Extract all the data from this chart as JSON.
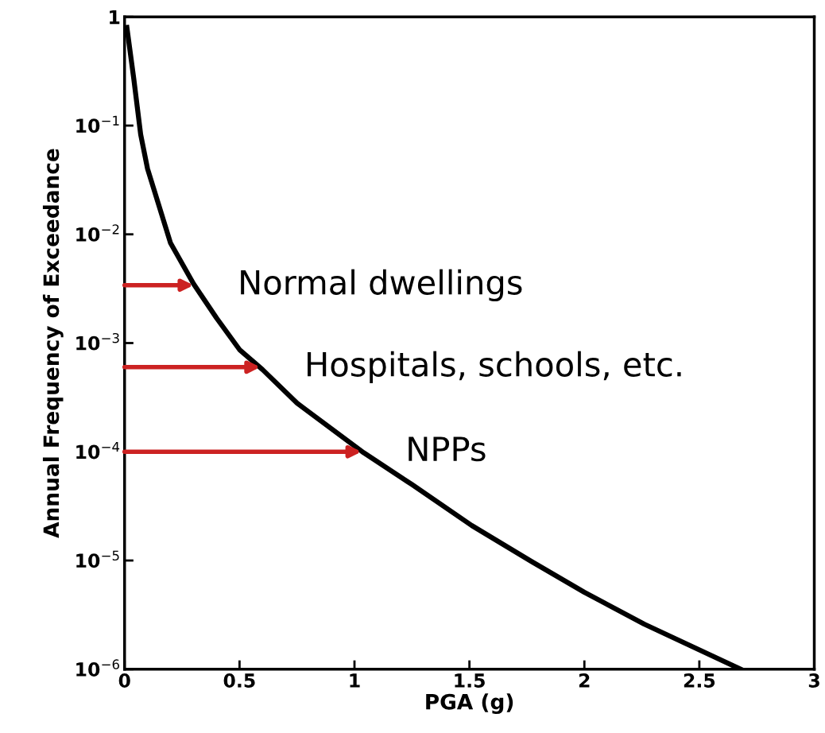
{
  "chart_data": {
    "type": "line",
    "xlabel": "PGA (g)",
    "ylabel": "Annual Frequency of Exceedance",
    "log": "y",
    "grid": false,
    "legend": false,
    "marker": "none",
    "line_style": "solid",
    "xlim": [
      0,
      3
    ],
    "xticks": [
      0,
      0.5,
      1,
      1.5,
      2,
      2.5,
      3
    ],
    "ylim": [
      1e-06,
      1
    ],
    "yticks": [
      {
        "value": 1e-06,
        "label": "10$^{−6}$"
      },
      {
        "value": 1e-05,
        "label": "10$^{−5}$"
      },
      {
        "value": 0.0001,
        "label": "10$^{−4}$"
      },
      {
        "value": 0.001,
        "label": "10$^{−3}$"
      },
      {
        "value": 0.01,
        "label": "10$^{−2}$"
      },
      {
        "value": 0.1,
        "label": "10$^{−1}$"
      },
      1
    ],
    "series": [
      {
        "color": "#000000",
        "x": [
          0.01,
          0.04,
          0.07,
          0.1,
          0.2,
          0.3,
          0.4,
          0.5,
          0.6,
          0.75,
          1.04,
          1.25,
          1.51,
          1.77,
          2.0,
          2.26,
          2.68
        ],
        "values": [
          0.8,
          0.27,
          0.083,
          0.04,
          0.0083,
          0.0035,
          0.0017,
          0.00087,
          0.00057,
          0.00028,
          9.8e-05,
          5e-05,
          2.1e-05,
          9.8e-06,
          5.1e-06,
          2.6e-06,
          1e-06
        ]
      }
    ],
    "annotations": [
      {
        "text": "Normal dwellings",
        "x": 0.3,
        "y": 0.0034
      },
      {
        "text": "Hospitals, schools, etc.",
        "x": 0.59,
        "y": 0.0006
      },
      {
        "text": "NPPs",
        "x": 1.03,
        "y": 0.0001
      }
    ]
  }
}
